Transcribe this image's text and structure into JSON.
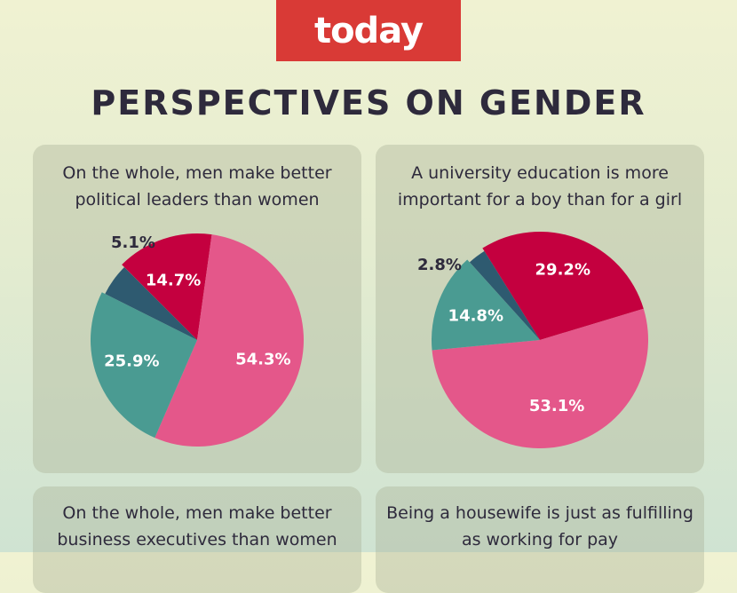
{
  "brand": {
    "logo_text": "today"
  },
  "title": "PERSPECTIVES ON GENDER",
  "colors": {
    "background": "#eef1d3",
    "logo_bg": "#d93a36",
    "title_text": "#2e2a3c",
    "crimson": "#c4003f",
    "pink": "#e4578a",
    "teal": "#4a9b92",
    "navy": "#2e5a70"
  },
  "chart_data": [
    {
      "type": "pie",
      "title": "On the whole, men make better political leaders than women",
      "slices": [
        {
          "value": 14.7,
          "label": "14.7%",
          "color": "#c4003f"
        },
        {
          "value": 54.3,
          "label": "54.3%",
          "color": "#e4578a"
        },
        {
          "value": 25.9,
          "label": "25.9%",
          "color": "#4a9b92"
        },
        {
          "value": 5.1,
          "label": "5.1%",
          "color": "#2e5a70"
        }
      ]
    },
    {
      "type": "pie",
      "title": "A university education is more important for a boy than for a girl",
      "slices": [
        {
          "value": 29.2,
          "label": "29.2%",
          "color": "#c4003f"
        },
        {
          "value": 53.1,
          "label": "53.1%",
          "color": "#e4578a"
        },
        {
          "value": 14.8,
          "label": "14.8%",
          "color": "#4a9b92"
        },
        {
          "value": 2.8,
          "label": "2.8%",
          "color": "#2e5a70"
        }
      ]
    },
    {
      "type": "pie",
      "title": "On the whole, men make better business executives than women",
      "slices": []
    },
    {
      "type": "pie",
      "title": "Being a housewife is just as fulfilling as working for pay",
      "slices": []
    }
  ]
}
